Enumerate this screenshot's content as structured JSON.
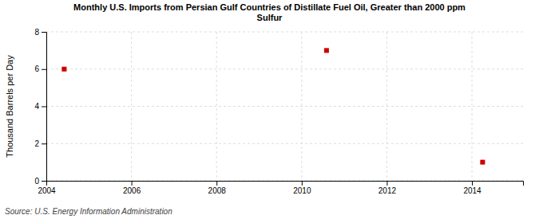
{
  "chart_data": {
    "type": "scatter",
    "title": "Monthly U.S. Imports from Persian Gulf Countries of Distillate Fuel Oil, Greater than 2000 ppm\nSulfur",
    "y_label": "Thousand Barrels per Day",
    "source": "Source: U.S. Energy Information Administration",
    "x": [
      2004.42,
      2010.583,
      2014.25
    ],
    "values": [
      6,
      7,
      1
    ],
    "color": "#cc0000",
    "marker": "square",
    "xlim": [
      2004,
      2015.2
    ],
    "ylim": [
      0,
      8
    ],
    "xticks": [
      2004,
      2006,
      2008,
      2010,
      2012,
      2014
    ],
    "yticks": [
      0,
      2,
      4,
      6,
      8
    ],
    "grid": true
  }
}
